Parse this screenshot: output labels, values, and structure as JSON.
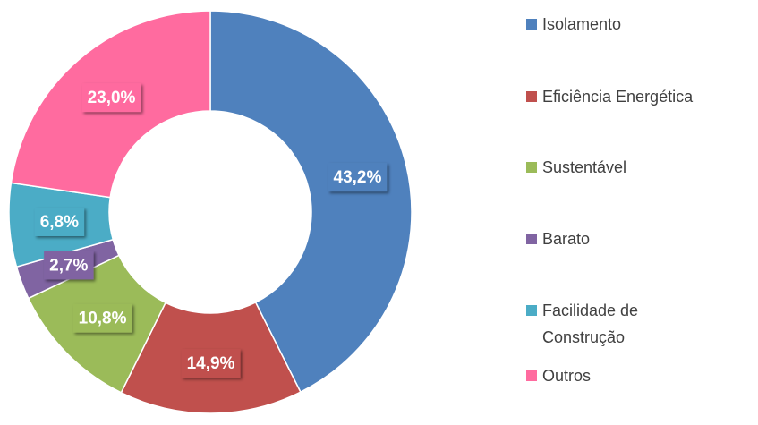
{
  "chart_data": {
    "type": "donut",
    "categories": [
      "Isolamento",
      "Eficiência Energética",
      "Sustentável",
      "Barato",
      "Facilidade de Construção",
      "Outros"
    ],
    "values": [
      43.2,
      14.9,
      10.8,
      2.7,
      6.8,
      23.0
    ],
    "value_labels": [
      "43,2%",
      "14,9%",
      "10,8%",
      "2,7%",
      "6,8%",
      "23,0%"
    ],
    "colors": [
      "#4f81bd",
      "#c0504d",
      "#9bbb59",
      "#8064a2",
      "#4bacc6",
      "#ff6b9f"
    ],
    "legend": "right"
  }
}
